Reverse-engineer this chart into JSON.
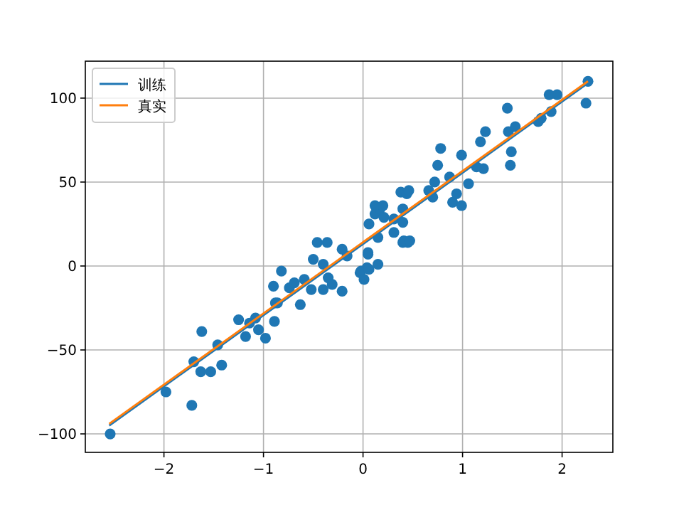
{
  "chart_data": {
    "type": "scatter",
    "xlim": [
      -2.79,
      2.51
    ],
    "ylim": [
      -111,
      122
    ],
    "xticks": [
      -2,
      -1,
      0,
      1,
      2
    ],
    "yticks": [
      -100,
      -50,
      0,
      50,
      100
    ],
    "grid": true,
    "legend": "top left",
    "series": [
      {
        "type": "scatter",
        "marker": "circle",
        "color": "#1f77b4",
        "x": [
          -2.54,
          -1.98,
          -1.72,
          -1.62,
          -1.7,
          -1.63,
          -1.53,
          -1.42,
          -1.46,
          -1.25,
          -1.18,
          -1.14,
          -1.08,
          -1.05,
          -0.98,
          -0.89,
          -0.88,
          -0.86,
          -0.9,
          -0.82,
          -0.63,
          -0.74,
          -0.69,
          -0.59,
          -0.52,
          -0.5,
          -0.4,
          -0.4,
          -0.35,
          -0.31,
          -0.21,
          -0.21,
          -0.16,
          -0.46,
          -0.36,
          -0.03,
          0.04,
          0.05,
          -0.02,
          0.01,
          0.06,
          0.15,
          0.4,
          0.45,
          0.05,
          0.06,
          0.12,
          0.17,
          0.12,
          0.2,
          0.21,
          0.31,
          0.31,
          0.15,
          0.4,
          0.4,
          0.38,
          0.44,
          0.46,
          0.41,
          0.47,
          0.66,
          0.7,
          0.72,
          0.75,
          0.78,
          0.87,
          0.9,
          0.94,
          0.99,
          0.99,
          1.06,
          1.14,
          1.21,
          1.18,
          1.23,
          1.45,
          1.46,
          1.53,
          1.49,
          1.48,
          1.76,
          1.79,
          1.87,
          1.95,
          1.89,
          2.26,
          2.24
        ],
        "values": [
          -100,
          -75,
          -83,
          -39,
          -57,
          -63,
          -63,
          -59,
          -47,
          -32,
          -42,
          -34,
          -31,
          -38,
          -43,
          -33,
          -22,
          -22,
          -12,
          -3,
          -23,
          -13,
          -10,
          -8,
          -14,
          4,
          1,
          -14,
          -7,
          -11,
          -15,
          10,
          6,
          14,
          14,
          -4,
          -1,
          7,
          -3,
          -8,
          -2,
          1,
          14,
          14,
          8,
          25,
          31,
          34,
          36,
          36,
          29,
          28,
          20,
          17,
          34,
          26,
          44,
          43,
          45,
          15,
          15,
          45,
          41,
          50,
          60,
          70,
          53,
          38,
          43,
          36,
          66,
          49,
          59,
          58,
          74,
          80,
          94,
          80,
          83,
          68,
          60,
          86,
          88,
          102,
          102,
          92,
          110,
          97
        ]
      },
      {
        "type": "line",
        "name": "训练",
        "marker": "none",
        "color": "#1f77b4",
        "x": [
          -2.55,
          2.26
        ],
        "values": [
          -95,
          109
        ]
      },
      {
        "type": "line",
        "name": "真实",
        "marker": "none",
        "color": "#ff7f0e",
        "x": [
          -2.55,
          2.26
        ],
        "values": [
          -94,
          110
        ]
      }
    ]
  }
}
